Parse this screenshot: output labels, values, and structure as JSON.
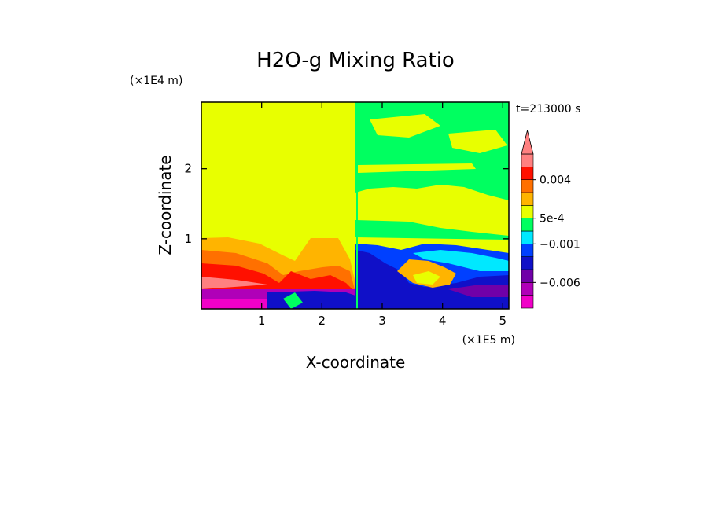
{
  "chart_data": {
    "type": "heatmap",
    "title": "H2O-g Mixing Ratio",
    "xlabel": "X-coordinate",
    "ylabel": "Z-coordinate",
    "x_unit_label": "(×1E5 m)",
    "y_unit_label": "(×1E4 m)",
    "time_label": "t=213000 s",
    "xlim": [
      0,
      5.1
    ],
    "ylim": [
      0,
      2.95
    ],
    "x_ticks": [
      1,
      2,
      3,
      4,
      5
    ],
    "y_ticks": [
      1,
      2
    ],
    "x_tick_labels": [
      "1",
      "2",
      "3",
      "4",
      "5"
    ],
    "y_tick_labels": [
      "1",
      "2"
    ],
    "colorbar": {
      "levels": [
        -0.01,
        -0.008,
        -0.006,
        -0.004,
        -0.002,
        -0.001,
        0.0,
        0.0005,
        0.001,
        0.002,
        0.004,
        0.006,
        0.008
      ],
      "colors": [
        "#f000c8",
        "#b000b8",
        "#7000a8",
        "#1010c8",
        "#0040ff",
        "#00e8ff",
        "#00ff60",
        "#e8ff00",
        "#ffb400",
        "#ff7000",
        "#ff1000",
        "#ff8080",
        "#ff8080"
      ],
      "labels": [
        {
          "value": 0.004,
          "text": "0.004"
        },
        {
          "value": 0.0005,
          "text": "5e-4"
        },
        {
          "value": -0.001,
          "text": "−0.001"
        },
        {
          "value": -0.006,
          "text": "−0.006"
        }
      ],
      "extend": "max"
    },
    "regions": [
      {
        "label": "upper-left",
        "color": "#e8ff00",
        "x": [
          0,
          2.55
        ],
        "z": [
          1.0,
          2.95
        ]
      },
      {
        "label": "upper-right",
        "color": "#00ff60",
        "x": [
          2.55,
          5.1
        ],
        "z": [
          1.9,
          2.95
        ]
      },
      {
        "label": "right-middle",
        "color": "#e8ff00",
        "x": [
          2.55,
          5.1
        ],
        "z": [
          1.05,
          1.9
        ]
      },
      {
        "label": "left-lower",
        "color": "#ff1000",
        "x": [
          0,
          2.55
        ],
        "z": [
          0.3,
          0.8
        ]
      },
      {
        "label": "left-bottom",
        "color": "#b000b8",
        "x": [
          0,
          2.55
        ],
        "z": [
          0,
          0.3
        ]
      },
      {
        "label": "right-lower",
        "color": "#1010c8",
        "x": [
          2.55,
          5.1
        ],
        "z": [
          0,
          0.9
        ]
      }
    ]
  }
}
